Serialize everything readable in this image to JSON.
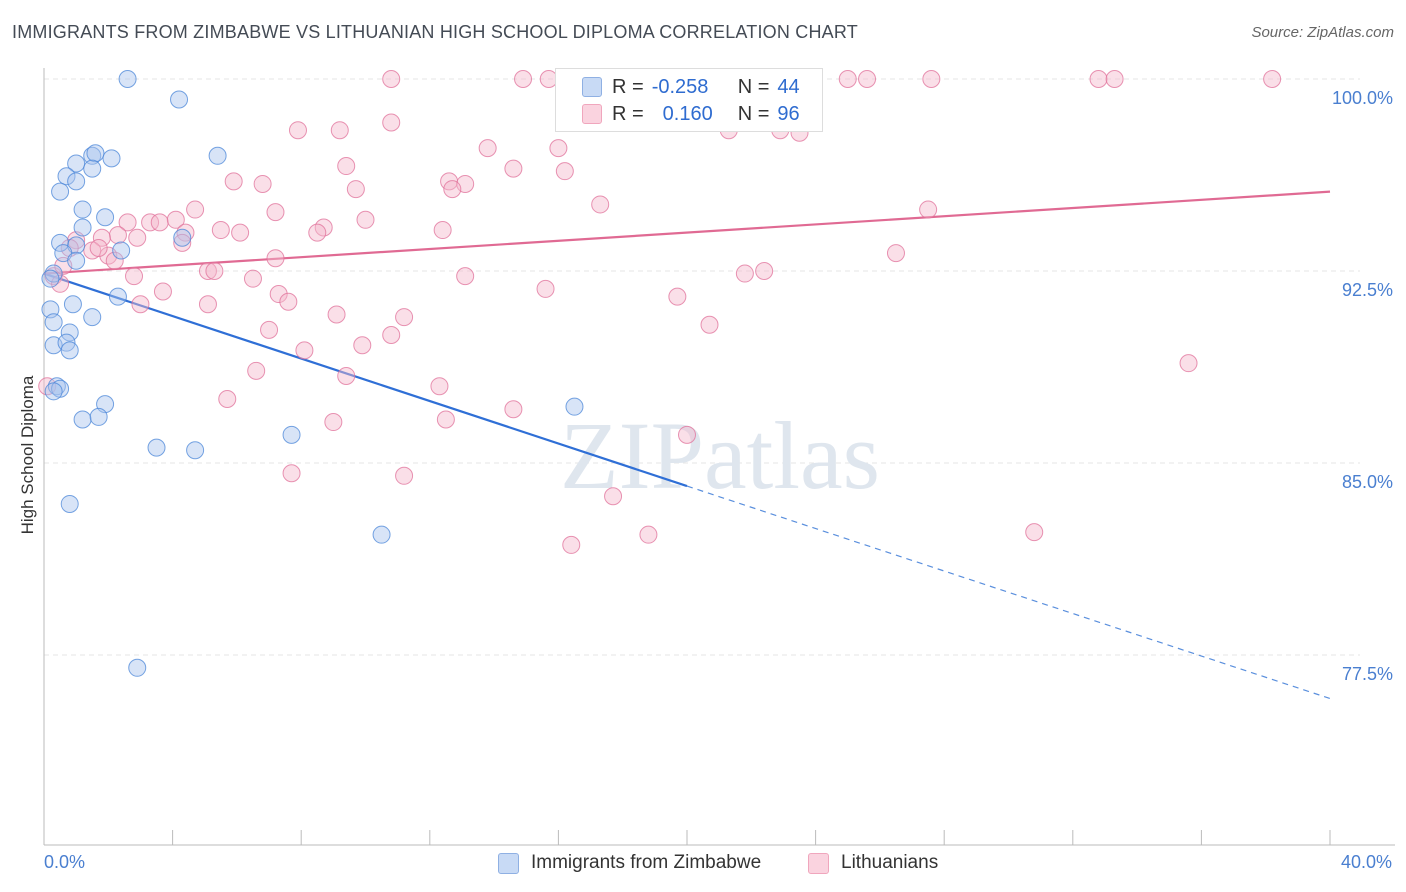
{
  "title": "IMMIGRANTS FROM ZIMBABWE VS LITHUANIAN HIGH SCHOOL DIPLOMA CORRELATION CHART",
  "source": "Source: ZipAtlas.com",
  "watermark": "ZIPatlas",
  "legend": {
    "r_label": "R =",
    "n_label": "N =",
    "rows": [
      {
        "r": "-0.258",
        "n": "44",
        "color": "#a8c4ee"
      },
      {
        "r": "0.160",
        "n": "96",
        "color": "#f5b8cb"
      }
    ]
  },
  "bottom_legend": {
    "zimbabwe": "Immigrants from Zimbabwe",
    "lithuanians": "Lithuanians"
  },
  "chart_data": {
    "type": "scatter",
    "title": "IMMIGRANTS FROM ZIMBABWE VS LITHUANIAN HIGH SCHOOL DIPLOMA CORRELATION CHART",
    "xlabel": "",
    "ylabel": "High School Diploma",
    "xlim": [
      0.0,
      40.0
    ],
    "ylim": [
      71.0,
      100.8
    ],
    "x_tick_labels": [
      "0.0%",
      "40.0%"
    ],
    "y_ticks": [
      77.5,
      85.0,
      92.5,
      100.0
    ],
    "y_tick_labels": [
      "77.5%",
      "85.0%",
      "92.5%",
      "100.0%"
    ],
    "grid": true,
    "series": [
      {
        "name": "Immigrants from Zimbabwe",
        "color": "#4a86d8",
        "fill": "#a8c4ee",
        "trend": {
          "x0": 0.0,
          "y0": 92.4,
          "x1": 20.0,
          "y1": 84.1,
          "x_dash_end": 40.0,
          "y_dash_end": 75.8
        },
        "points": [
          [
            2.6,
            100.0
          ],
          [
            4.2,
            99.2
          ],
          [
            1.5,
            97.0
          ],
          [
            1.6,
            97.1
          ],
          [
            1.0,
            96.7
          ],
          [
            2.1,
            96.9
          ],
          [
            1.5,
            96.5
          ],
          [
            0.7,
            96.2
          ],
          [
            1.0,
            96.0
          ],
          [
            0.5,
            95.6
          ],
          [
            5.4,
            97.0
          ],
          [
            1.2,
            94.9
          ],
          [
            1.9,
            94.6
          ],
          [
            1.2,
            94.2
          ],
          [
            0.5,
            93.6
          ],
          [
            1.0,
            93.5
          ],
          [
            0.6,
            93.2
          ],
          [
            2.4,
            93.3
          ],
          [
            1.0,
            92.9
          ],
          [
            4.3,
            93.8
          ],
          [
            0.3,
            92.4
          ],
          [
            0.2,
            92.2
          ],
          [
            0.2,
            91.0
          ],
          [
            2.3,
            91.5
          ],
          [
            0.9,
            91.2
          ],
          [
            1.5,
            90.7
          ],
          [
            0.3,
            90.5
          ],
          [
            0.8,
            90.1
          ],
          [
            0.3,
            89.6
          ],
          [
            0.7,
            89.7
          ],
          [
            0.8,
            89.4
          ],
          [
            0.4,
            88.0
          ],
          [
            0.5,
            87.9
          ],
          [
            1.9,
            87.3
          ],
          [
            1.2,
            86.7
          ],
          [
            1.7,
            86.8
          ],
          [
            7.7,
            86.1
          ],
          [
            16.5,
            87.2
          ],
          [
            3.5,
            85.6
          ],
          [
            4.7,
            85.5
          ],
          [
            0.8,
            83.4
          ],
          [
            10.5,
            82.2
          ],
          [
            2.9,
            77.0
          ],
          [
            0.3,
            87.8
          ]
        ]
      },
      {
        "name": "Lithuanians",
        "color": "#e07099",
        "fill": "#f5b8cb",
        "trend": {
          "x0": 0.0,
          "y0": 92.4,
          "x1": 40.0,
          "y1": 95.6
        },
        "points": [
          [
            10.8,
            100.0
          ],
          [
            14.9,
            100.0
          ],
          [
            15.7,
            100.0
          ],
          [
            20.4,
            100.0
          ],
          [
            23.1,
            100.0
          ],
          [
            23.8,
            100.0
          ],
          [
            25.0,
            100.0
          ],
          [
            25.6,
            100.0
          ],
          [
            27.6,
            100.0
          ],
          [
            32.8,
            100.0
          ],
          [
            33.3,
            100.0
          ],
          [
            38.2,
            100.0
          ],
          [
            21.3,
            98.0
          ],
          [
            7.9,
            98.0
          ],
          [
            9.2,
            98.0
          ],
          [
            10.8,
            98.3
          ],
          [
            13.8,
            97.3
          ],
          [
            16.0,
            97.3
          ],
          [
            14.6,
            96.5
          ],
          [
            9.4,
            96.6
          ],
          [
            16.2,
            96.4
          ],
          [
            5.9,
            96.0
          ],
          [
            6.8,
            95.9
          ],
          [
            12.6,
            96.0
          ],
          [
            13.1,
            95.9
          ],
          [
            9.7,
            95.7
          ],
          [
            4.7,
            94.9
          ],
          [
            7.2,
            94.8
          ],
          [
            2.6,
            94.4
          ],
          [
            3.3,
            94.4
          ],
          [
            3.6,
            94.4
          ],
          [
            4.1,
            94.5
          ],
          [
            8.7,
            94.2
          ],
          [
            8.5,
            94.0
          ],
          [
            10.0,
            94.5
          ],
          [
            12.4,
            94.1
          ],
          [
            5.5,
            94.1
          ],
          [
            6.1,
            94.0
          ],
          [
            2.3,
            93.9
          ],
          [
            1.8,
            93.8
          ],
          [
            2.9,
            93.8
          ],
          [
            4.4,
            94.0
          ],
          [
            1.0,
            93.7
          ],
          [
            0.8,
            93.4
          ],
          [
            27.5,
            94.9
          ],
          [
            26.5,
            93.2
          ],
          [
            7.2,
            93.0
          ],
          [
            2.0,
            93.1
          ],
          [
            1.5,
            93.3
          ],
          [
            4.3,
            93.6
          ],
          [
            5.1,
            92.5
          ],
          [
            5.3,
            92.5
          ],
          [
            6.5,
            92.2
          ],
          [
            2.8,
            92.3
          ],
          [
            13.1,
            92.3
          ],
          [
            21.8,
            92.4
          ],
          [
            22.4,
            92.5
          ],
          [
            0.3,
            92.3
          ],
          [
            0.5,
            92.0
          ],
          [
            3.7,
            91.7
          ],
          [
            7.3,
            91.6
          ],
          [
            7.6,
            91.3
          ],
          [
            15.6,
            91.8
          ],
          [
            19.7,
            91.5
          ],
          [
            5.1,
            91.2
          ],
          [
            3.0,
            91.2
          ],
          [
            9.1,
            90.8
          ],
          [
            11.2,
            90.7
          ],
          [
            10.8,
            90.0
          ],
          [
            7.0,
            90.2
          ],
          [
            9.9,
            89.6
          ],
          [
            20.7,
            90.4
          ],
          [
            8.1,
            89.4
          ],
          [
            35.6,
            88.9
          ],
          [
            6.6,
            88.6
          ],
          [
            9.4,
            88.4
          ],
          [
            12.3,
            88.0
          ],
          [
            5.7,
            87.5
          ],
          [
            14.6,
            87.1
          ],
          [
            9.0,
            86.6
          ],
          [
            12.5,
            86.7
          ],
          [
            20.0,
            86.1
          ],
          [
            7.7,
            84.6
          ],
          [
            11.2,
            84.5
          ],
          [
            17.7,
            83.7
          ],
          [
            30.8,
            82.3
          ],
          [
            18.8,
            82.2
          ],
          [
            16.4,
            81.8
          ],
          [
            0.1,
            88.0
          ],
          [
            22.9,
            98.0
          ],
          [
            0.6,
            92.7
          ],
          [
            2.2,
            92.9
          ],
          [
            12.7,
            95.7
          ],
          [
            23.5,
            97.9
          ],
          [
            17.3,
            95.1
          ],
          [
            1.7,
            93.4
          ]
        ]
      }
    ]
  }
}
